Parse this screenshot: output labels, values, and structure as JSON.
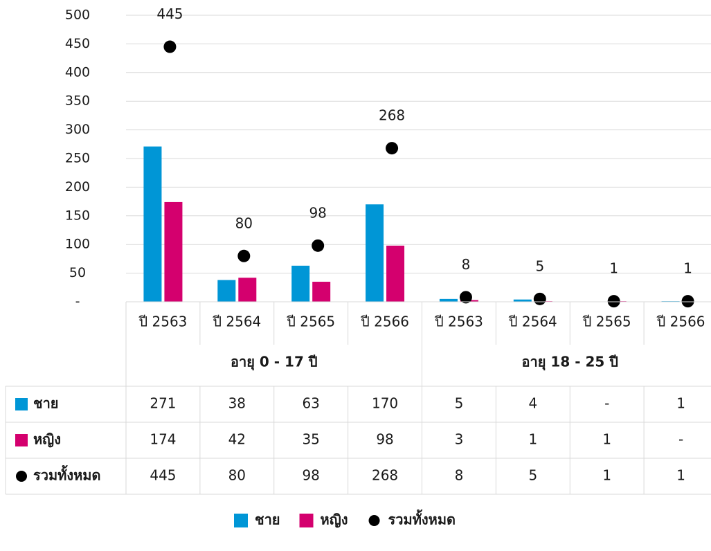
{
  "chart_data": {
    "type": "bar",
    "title": "",
    "xlabel": "",
    "ylabel": "",
    "ylim": [
      0,
      500
    ],
    "yticks": [
      0,
      50,
      100,
      150,
      200,
      250,
      300,
      350,
      400,
      450,
      500
    ],
    "ytick_labels": [
      "-",
      "50",
      "100",
      "150",
      "200",
      "250",
      "300",
      "350",
      "400",
      "450",
      "500"
    ],
    "grid": true,
    "legend_position": "bottom",
    "categories": [
      "ปี 2563",
      "ปี 2564",
      "ปี 2565",
      "ปี 2566",
      "ปี 2563",
      "ปี 2564",
      "ปี 2565",
      "ปี 2566"
    ],
    "groups": [
      {
        "label": "อายุ 0 - 17 ปี",
        "count": 4
      },
      {
        "label": "อายุ 18 - 25 ปี",
        "count": 4
      }
    ],
    "series": [
      {
        "name": "ชาย",
        "kind": "bar",
        "color": "#0096D6",
        "values": [
          271,
          38,
          63,
          170,
          5,
          4,
          0,
          1
        ],
        "table_values": [
          "271",
          "38",
          "63",
          "170",
          "5",
          "4",
          "-",
          "1"
        ]
      },
      {
        "name": "หญิง",
        "kind": "bar",
        "color": "#D4006E",
        "values": [
          174,
          42,
          35,
          98,
          3,
          1,
          1,
          0
        ],
        "table_values": [
          "174",
          "42",
          "35",
          "98",
          "3",
          "1",
          "1",
          "-"
        ]
      },
      {
        "name": "รวมทั้งหมด",
        "kind": "marker",
        "color": "#000000",
        "values": [
          445,
          80,
          98,
          268,
          8,
          5,
          1,
          1
        ],
        "table_values": [
          "445",
          "80",
          "98",
          "268",
          "8",
          "5",
          "1",
          "1"
        ],
        "data_labels": [
          "445",
          "80",
          "98",
          "268",
          "8",
          "5",
          "1",
          "1"
        ]
      }
    ]
  }
}
